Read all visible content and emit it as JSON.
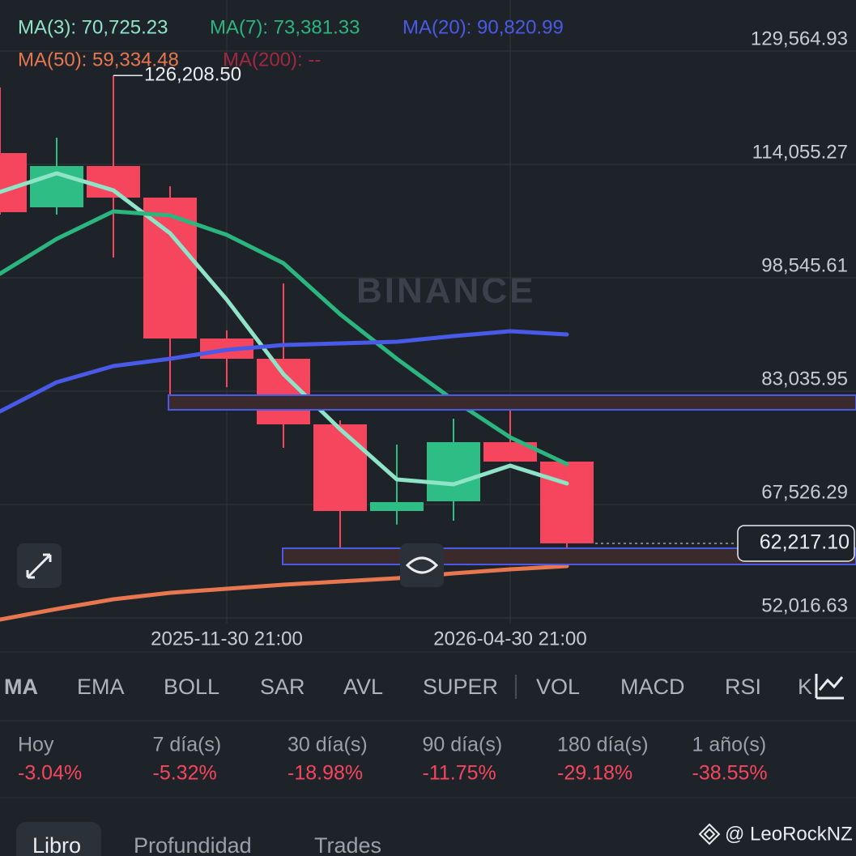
{
  "legend": [
    "MA(3): 70,725.23",
    "MA(7): 73,381.33",
    "MA(20): 90,820.99",
    "MA(50): 59,334.48",
    "MA(200): --"
  ],
  "chart_data": {
    "type": "candlestick",
    "watermark": "BINANCE",
    "ylim": [
      49028,
      136544
    ],
    "yticks": [
      {
        "value": 129564.93,
        "label": "129,564.93"
      },
      {
        "value": 114055.27,
        "label": "114,055.27"
      },
      {
        "value": 98545.61,
        "label": "98,545.61"
      },
      {
        "value": 83035.95,
        "label": "83,035.95"
      },
      {
        "value": 67526.29,
        "label": "67,526.29"
      },
      {
        "value": 52016.63,
        "label": "52,016.63"
      }
    ],
    "categories": [
      null,
      null,
      null,
      null,
      "2025-11-30 21:00",
      null,
      null,
      null,
      null,
      "2026-04-30 21:00",
      null
    ],
    "open": [
      115606,
      108185,
      113834,
      109514,
      90238,
      87469,
      78496,
      66642,
      67972,
      76059,
      73401
    ],
    "high": [
      124580,
      117711,
      126208.5,
      111065,
      91351,
      97771,
      79049,
      75727,
      79271,
      82484,
      73401
    ],
    "low": [
      107188,
      107188,
      101317,
      82262,
      83591,
      75284,
      59552,
      64786,
      65312,
      73401,
      59220
    ],
    "close": [
      107520,
      113834,
      109514,
      90238,
      87469,
      78496,
      66642,
      67861,
      76059,
      73401,
      62217.1
    ],
    "high_label": {
      "value": 126208.5,
      "label": "126,208.50"
    },
    "last_price": {
      "value": 62217.1,
      "label": "62,217.10"
    },
    "series": [
      {
        "name": "MA(3)",
        "color": "#8fe3c6",
        "values": [
          110289,
          112837,
          110511,
          104640,
          95556,
          85364,
          77831,
          70962,
          70298,
          72846,
          70409
        ]
      },
      {
        "name": "MA(7)",
        "color": "#2bb57f",
        "values": [
          99101,
          103864,
          107631,
          107077,
          104418,
          100541,
          93562,
          87469,
          81819,
          76723,
          73067
        ]
      },
      {
        "name": "MA(20)",
        "color": "#4a5ae8",
        "values": [
          80268,
          84256,
          86472,
          87469,
          88687,
          89352,
          89573,
          89795,
          90571,
          91235,
          90792
        ]
      },
      {
        "name": "MA(50)",
        "color": "#e8764f",
        "values": [
          51798,
          53238,
          54566,
          55453,
          56007,
          56561,
          57004,
          57447,
          58112,
          58666,
          59109
        ]
      }
    ]
  },
  "indicator_tabs": [
    "MA",
    "EMA",
    "BOLL",
    "SAR",
    "AVL",
    "SUPER",
    "VOL",
    "MACD",
    "RSI",
    "K"
  ],
  "periods": [
    {
      "label": "Hoy",
      "change": "-3.04%"
    },
    {
      "label": "7 día(s)",
      "change": "-5.32%"
    },
    {
      "label": "30 día(s)",
      "change": "-18.98%"
    },
    {
      "label": "90 día(s)",
      "change": "-11.75%"
    },
    {
      "label": "180 día(s)",
      "change": "-29.18%"
    },
    {
      "label": "1 año(s)",
      "change": "-38.55%"
    }
  ],
  "bottom_tabs": [
    "Libro",
    "Profundidad",
    "Trades"
  ],
  "user": "@ LeoRockNZ"
}
